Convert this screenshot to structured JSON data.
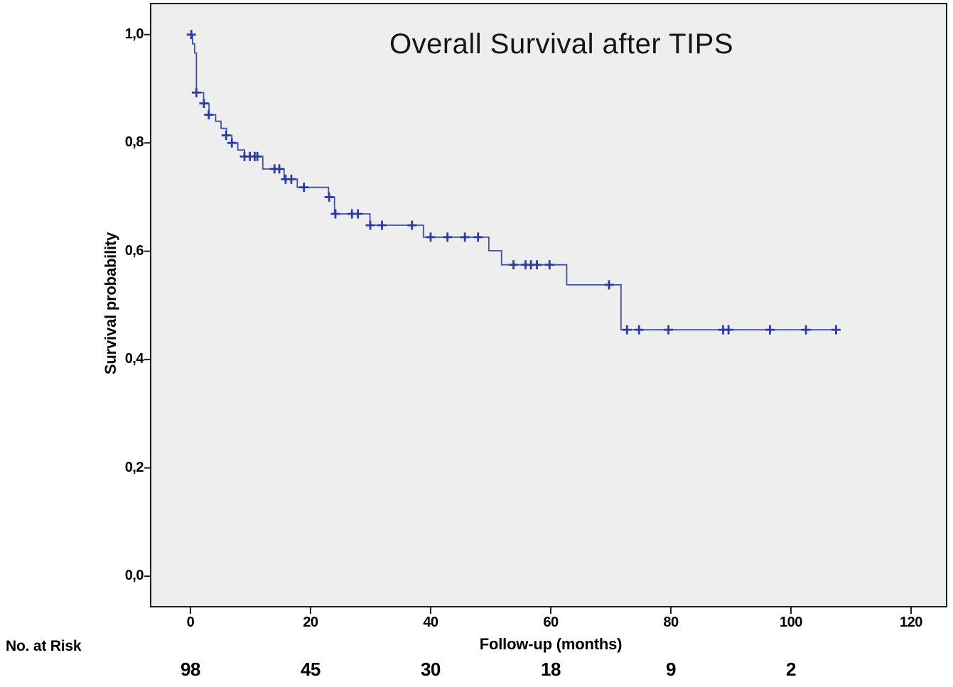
{
  "chart_data": {
    "type": "line",
    "subtype": "kaplan-meier-step",
    "title": "Overall Survival after TIPS",
    "xlabel": "Follow-up (months)",
    "ylabel": "Survival probability",
    "grid": false,
    "legend": null,
    "xlim": [
      -6.5,
      125.8
    ],
    "ylim": [
      -0.055,
      1.056
    ],
    "x_ticks": [
      {
        "value": 0,
        "label": "0"
      },
      {
        "value": 20,
        "label": "20"
      },
      {
        "value": 40,
        "label": "40"
      },
      {
        "value": 60,
        "label": "60"
      },
      {
        "value": 80,
        "label": "80"
      },
      {
        "value": 100,
        "label": "100"
      },
      {
        "value": 120,
        "label": "120"
      }
    ],
    "y_ticks": [
      {
        "value": 0.0,
        "label": "0,0"
      },
      {
        "value": 0.2,
        "label": "0,2"
      },
      {
        "value": 0.4,
        "label": "0,4"
      },
      {
        "value": 0.6,
        "label": "0,6"
      },
      {
        "value": 0.8,
        "label": "0,8"
      },
      {
        "value": 1.0,
        "label": "1,0"
      }
    ],
    "series": [
      {
        "name": "Overall survival",
        "color": "#3f51a8",
        "censor_color": "#2c3c9e",
        "steps": [
          [
            0,
            1.0
          ],
          [
            0.35,
            0.983
          ],
          [
            0.7,
            0.966
          ],
          [
            1.0,
            0.893
          ],
          [
            2.2,
            0.873
          ],
          [
            3.1,
            0.852
          ],
          [
            4.2,
            0.84
          ],
          [
            5.1,
            0.827
          ],
          [
            6.0,
            0.814
          ],
          [
            6.9,
            0.8
          ],
          [
            7.9,
            0.787
          ],
          [
            9.0,
            0.775
          ],
          [
            12.05,
            0.752
          ],
          [
            15.6,
            0.733
          ],
          [
            17.8,
            0.718
          ],
          [
            23.0,
            0.7
          ],
          [
            24.0,
            0.669
          ],
          [
            29.9,
            0.648
          ],
          [
            38.8,
            0.626
          ],
          [
            49.7,
            0.601
          ],
          [
            51.8,
            0.575
          ],
          [
            62.65,
            0.538
          ],
          [
            71.7,
            0.455
          ]
        ],
        "end_time": 107.8,
        "censors": [
          [
            0.15,
            1.0
          ],
          [
            1.0,
            0.893
          ],
          [
            2.25,
            0.873
          ],
          [
            3.05,
            0.852
          ],
          [
            5.95,
            0.814
          ],
          [
            6.9,
            0.8
          ],
          [
            9.0,
            0.775
          ],
          [
            9.9,
            0.775
          ],
          [
            10.7,
            0.775
          ],
          [
            11.15,
            0.775
          ],
          [
            14.0,
            0.752
          ],
          [
            14.8,
            0.752
          ],
          [
            15.85,
            0.733
          ],
          [
            16.8,
            0.733
          ],
          [
            18.9,
            0.718
          ],
          [
            23.1,
            0.7
          ],
          [
            24.15,
            0.669
          ],
          [
            26.9,
            0.669
          ],
          [
            27.9,
            0.669
          ],
          [
            29.95,
            0.648
          ],
          [
            31.9,
            0.648
          ],
          [
            36.9,
            0.648
          ],
          [
            40.0,
            0.626
          ],
          [
            42.8,
            0.626
          ],
          [
            45.7,
            0.626
          ],
          [
            47.9,
            0.626
          ],
          [
            53.8,
            0.575
          ],
          [
            55.8,
            0.575
          ],
          [
            56.7,
            0.575
          ],
          [
            57.7,
            0.575
          ],
          [
            59.8,
            0.575
          ],
          [
            69.7,
            0.538
          ],
          [
            72.7,
            0.455
          ],
          [
            74.7,
            0.455
          ],
          [
            79.6,
            0.455
          ],
          [
            88.7,
            0.455
          ],
          [
            89.6,
            0.455
          ],
          [
            96.5,
            0.455
          ],
          [
            102.5,
            0.455
          ],
          [
            107.5,
            0.455
          ]
        ]
      }
    ],
    "risk_table": {
      "label": "No. at Risk",
      "times": [
        0,
        20,
        40,
        60,
        80,
        100
      ],
      "counts": [
        "98",
        "45",
        "30",
        "18",
        "9",
        "2"
      ]
    },
    "colors": {
      "plot_background": "#eeeeef",
      "frame": "#1c1c1c",
      "text": "#000000",
      "line": "#3f51a8",
      "censor": "#2c3c9e"
    }
  }
}
